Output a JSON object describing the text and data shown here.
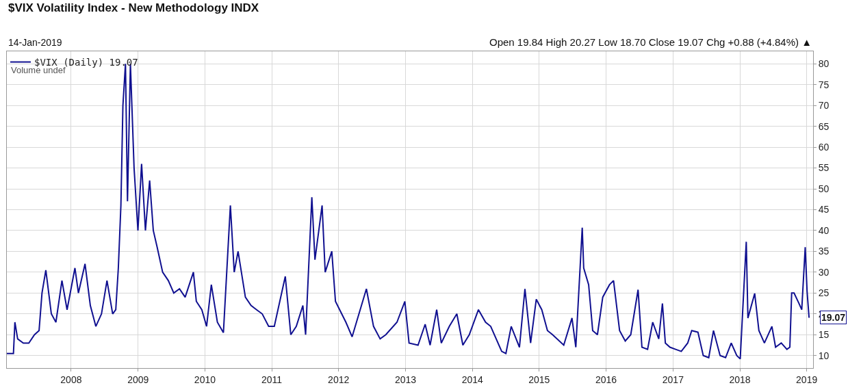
{
  "chart_data": {
    "type": "line",
    "title": "$VIX Volatility Index - New Methodology INDX",
    "subtitle": "14-Jan-2019",
    "annotations": [
      "Open 19.84 High 20.27 Low 18.70 Close 19.07 Chg +0.88 (+4.84%) ▲",
      "Volume undef",
      {
        "text": "19.07",
        "x": "2019-01-14",
        "y": 19.07
      }
    ],
    "x": [
      "2007-01-15",
      "2007-02-20",
      "2007-02-28",
      "2007-03-15",
      "2007-04-15",
      "2007-05-15",
      "2007-06-15",
      "2007-07-10",
      "2007-07-26",
      "2007-08-16",
      "2007-09-15",
      "2007-10-10",
      "2007-11-12",
      "2007-12-10",
      "2008-01-22",
      "2008-02-10",
      "2008-03-17",
      "2008-04-15",
      "2008-05-15",
      "2008-06-15",
      "2008-07-15",
      "2008-08-15",
      "2008-09-01",
      "2008-09-15",
      "2008-09-29",
      "2008-10-10",
      "2008-10-24",
      "2008-11-04",
      "2008-11-20",
      "2008-12-10",
      "2008-12-31",
      "2009-01-20",
      "2009-02-10",
      "2009-03-05",
      "2009-03-25",
      "2009-04-15",
      "2009-05-15",
      "2009-06-15",
      "2009-07-15",
      "2009-08-15",
      "2009-09-15",
      "2009-10-30",
      "2009-11-15",
      "2009-12-15",
      "2010-01-10",
      "2010-02-05",
      "2010-03-10",
      "2010-04-12",
      "2010-05-20",
      "2010-06-10",
      "2010-07-01",
      "2010-08-10",
      "2010-09-10",
      "2010-10-10",
      "2010-11-10",
      "2010-12-15",
      "2011-01-15",
      "2011-03-16",
      "2011-04-15",
      "2011-05-15",
      "2011-06-20",
      "2011-07-05",
      "2011-08-08",
      "2011-08-25",
      "2011-10-03",
      "2011-10-20",
      "2011-11-25",
      "2011-12-15",
      "2012-02-10",
      "2012-03-15",
      "2012-06-01",
      "2012-07-10",
      "2012-08-15",
      "2012-09-15",
      "2012-11-15",
      "2012-12-28",
      "2013-01-20",
      "2013-03-10",
      "2013-04-18",
      "2013-05-15",
      "2013-06-20",
      "2013-07-15",
      "2013-08-28",
      "2013-10-08",
      "2013-11-10",
      "2013-12-15",
      "2014-02-03",
      "2014-03-14",
      "2014-04-11",
      "2014-06-10",
      "2014-07-03",
      "2014-08-01",
      "2014-09-15",
      "2014-10-15",
      "2014-11-15",
      "2014-12-16",
      "2015-01-15",
      "2015-02-15",
      "2015-03-15",
      "2015-05-15",
      "2015-06-29",
      "2015-07-20",
      "2015-08-24",
      "2015-09-01",
      "2015-09-28",
      "2015-10-20",
      "2015-11-15",
      "2015-12-14",
      "2016-01-20",
      "2016-02-11",
      "2016-03-15",
      "2016-04-15",
      "2016-05-15",
      "2016-06-24",
      "2016-07-15",
      "2016-08-15",
      "2016-09-12",
      "2016-10-15",
      "2016-11-04",
      "2016-11-20",
      "2016-12-15",
      "2017-01-15",
      "2017-02-15",
      "2017-03-22",
      "2017-04-13",
      "2017-05-17",
      "2017-06-15",
      "2017-07-15",
      "2017-08-10",
      "2017-09-15",
      "2017-10-15",
      "2017-11-15",
      "2017-12-15",
      "2018-01-03",
      "2018-02-05",
      "2018-02-14",
      "2018-03-23",
      "2018-04-15",
      "2018-05-15",
      "2018-06-25",
      "2018-07-15",
      "2018-08-15",
      "2018-09-15",
      "2018-10-01",
      "2018-10-11",
      "2018-10-24",
      "2018-11-20",
      "2018-12-05",
      "2018-12-24",
      "2019-01-03",
      "2019-01-14"
    ],
    "series": [
      {
        "name": "$VIX (Daily) 19.07",
        "color": "#101090",
        "values": [
          10.5,
          10.5,
          18,
          14,
          13,
          13,
          15,
          16,
          25,
          30.5,
          20,
          18,
          28,
          21,
          31,
          25,
          32,
          22,
          17,
          20,
          28,
          20,
          21,
          31,
          46,
          70,
          80,
          47,
          80,
          55,
          40,
          56,
          40,
          52,
          40,
          36,
          30,
          28,
          25,
          26,
          24,
          30,
          23,
          21,
          17,
          27,
          18,
          15.5,
          46,
          30,
          35,
          24,
          22,
          21,
          20,
          17,
          17,
          29,
          15,
          17,
          22,
          15,
          48,
          33,
          46,
          30,
          35,
          23,
          18,
          14.5,
          26,
          17,
          14,
          15,
          18,
          23,
          13,
          12.5,
          17.5,
          12.5,
          21,
          13,
          17,
          20,
          12.5,
          15,
          21,
          18,
          17,
          11,
          10.5,
          17,
          12,
          26,
          13,
          23.5,
          21,
          16,
          15,
          12.5,
          19,
          12,
          40.7,
          31,
          27,
          16,
          15,
          24,
          27,
          28,
          16,
          13.5,
          15,
          25.8,
          12,
          11.5,
          18,
          14,
          22.5,
          13,
          12,
          11.5,
          11,
          13,
          16,
          15.6,
          10,
          9.5,
          16,
          10,
          9.5,
          13,
          10,
          9.2,
          37.3,
          19,
          24.9,
          16,
          13,
          17,
          12,
          13,
          11.5,
          12,
          25,
          25,
          22.5,
          21,
          36,
          25.5,
          19.07
        ]
      }
    ],
    "xlim": [
      "2007-01-15",
      "2019-02-05"
    ],
    "xticks": [
      {
        "value": "2008",
        "label": "2008"
      },
      {
        "value": "2009",
        "label": "2009"
      },
      {
        "value": "2010",
        "label": "2010"
      },
      {
        "value": "2011",
        "label": "2011"
      },
      {
        "value": "2012",
        "label": "2012"
      },
      {
        "value": "2013",
        "label": "2013"
      },
      {
        "value": "2014",
        "label": "2014"
      },
      {
        "value": "2015",
        "label": "2015"
      },
      {
        "value": "2016",
        "label": "2016"
      },
      {
        "value": "2017",
        "label": "2017"
      },
      {
        "value": "2018",
        "label": "2018"
      },
      {
        "value": "2019",
        "label": "2019"
      }
    ],
    "ylim": [
      7,
      83
    ],
    "yticks": [
      10,
      15,
      20,
      25,
      30,
      35,
      40,
      45,
      50,
      55,
      60,
      65,
      70,
      75,
      80
    ],
    "grid": true,
    "legend": "top left",
    "marker": "none",
    "line_style": "solid"
  }
}
